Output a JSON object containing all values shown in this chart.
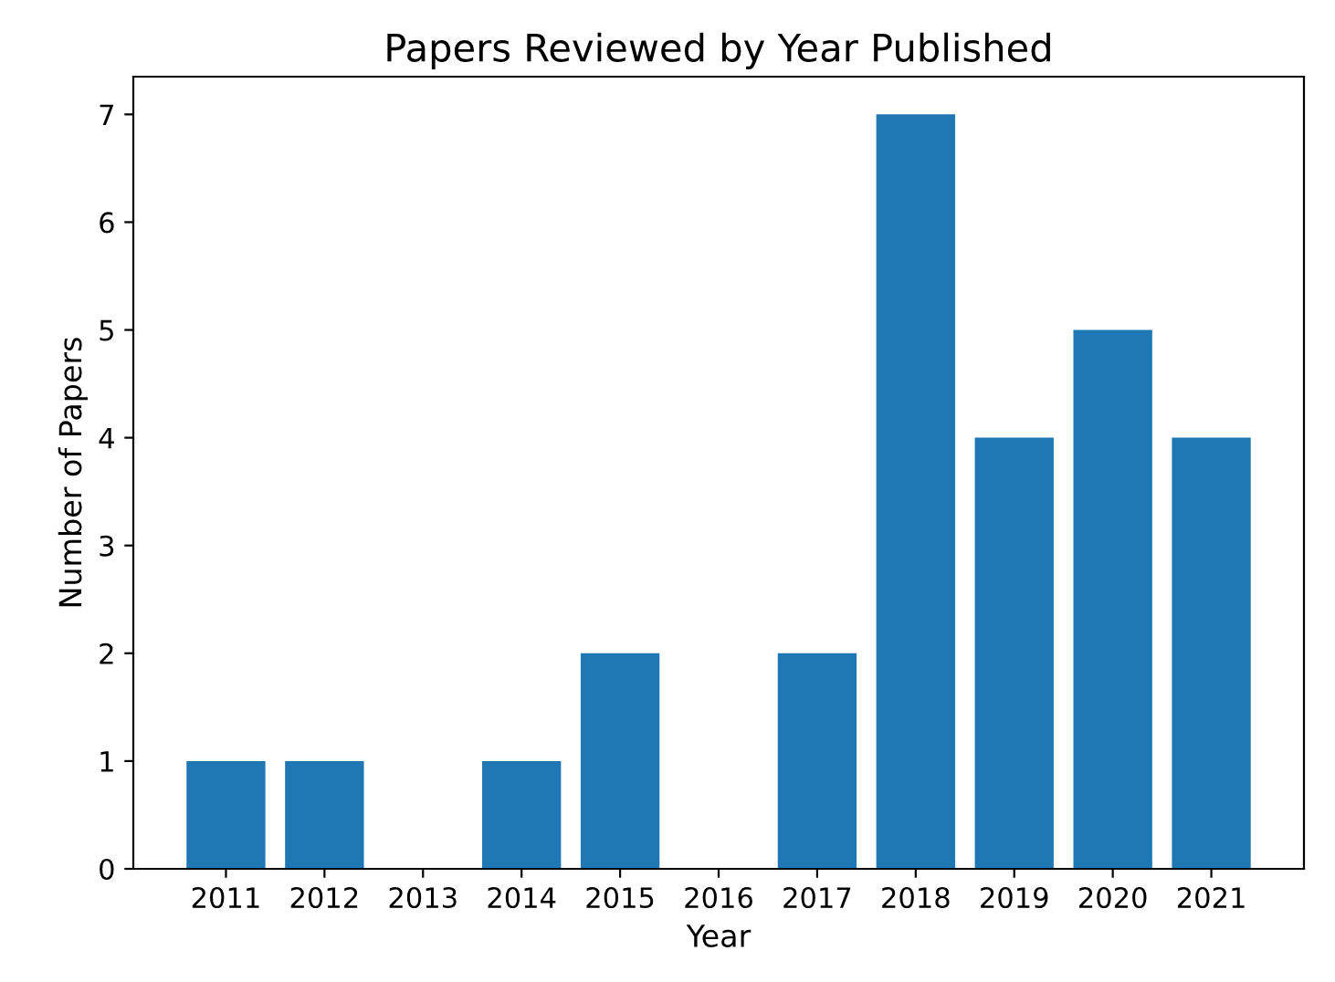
{
  "chart_data": {
    "type": "bar",
    "title": "Papers Reviewed by Year Published",
    "xlabel": "Year",
    "ylabel": "Number of Papers",
    "categories": [
      "2011",
      "2012",
      "2013",
      "2014",
      "2015",
      "2016",
      "2017",
      "2018",
      "2019",
      "2020",
      "2021"
    ],
    "values": [
      1,
      1,
      0,
      1,
      2,
      0,
      2,
      7,
      4,
      5,
      4
    ],
    "color": "#1f77b4",
    "ylim": [
      0,
      7.35
    ],
    "yticks": [
      0,
      1,
      2,
      3,
      4,
      5,
      6,
      7
    ],
    "grid": false
  }
}
